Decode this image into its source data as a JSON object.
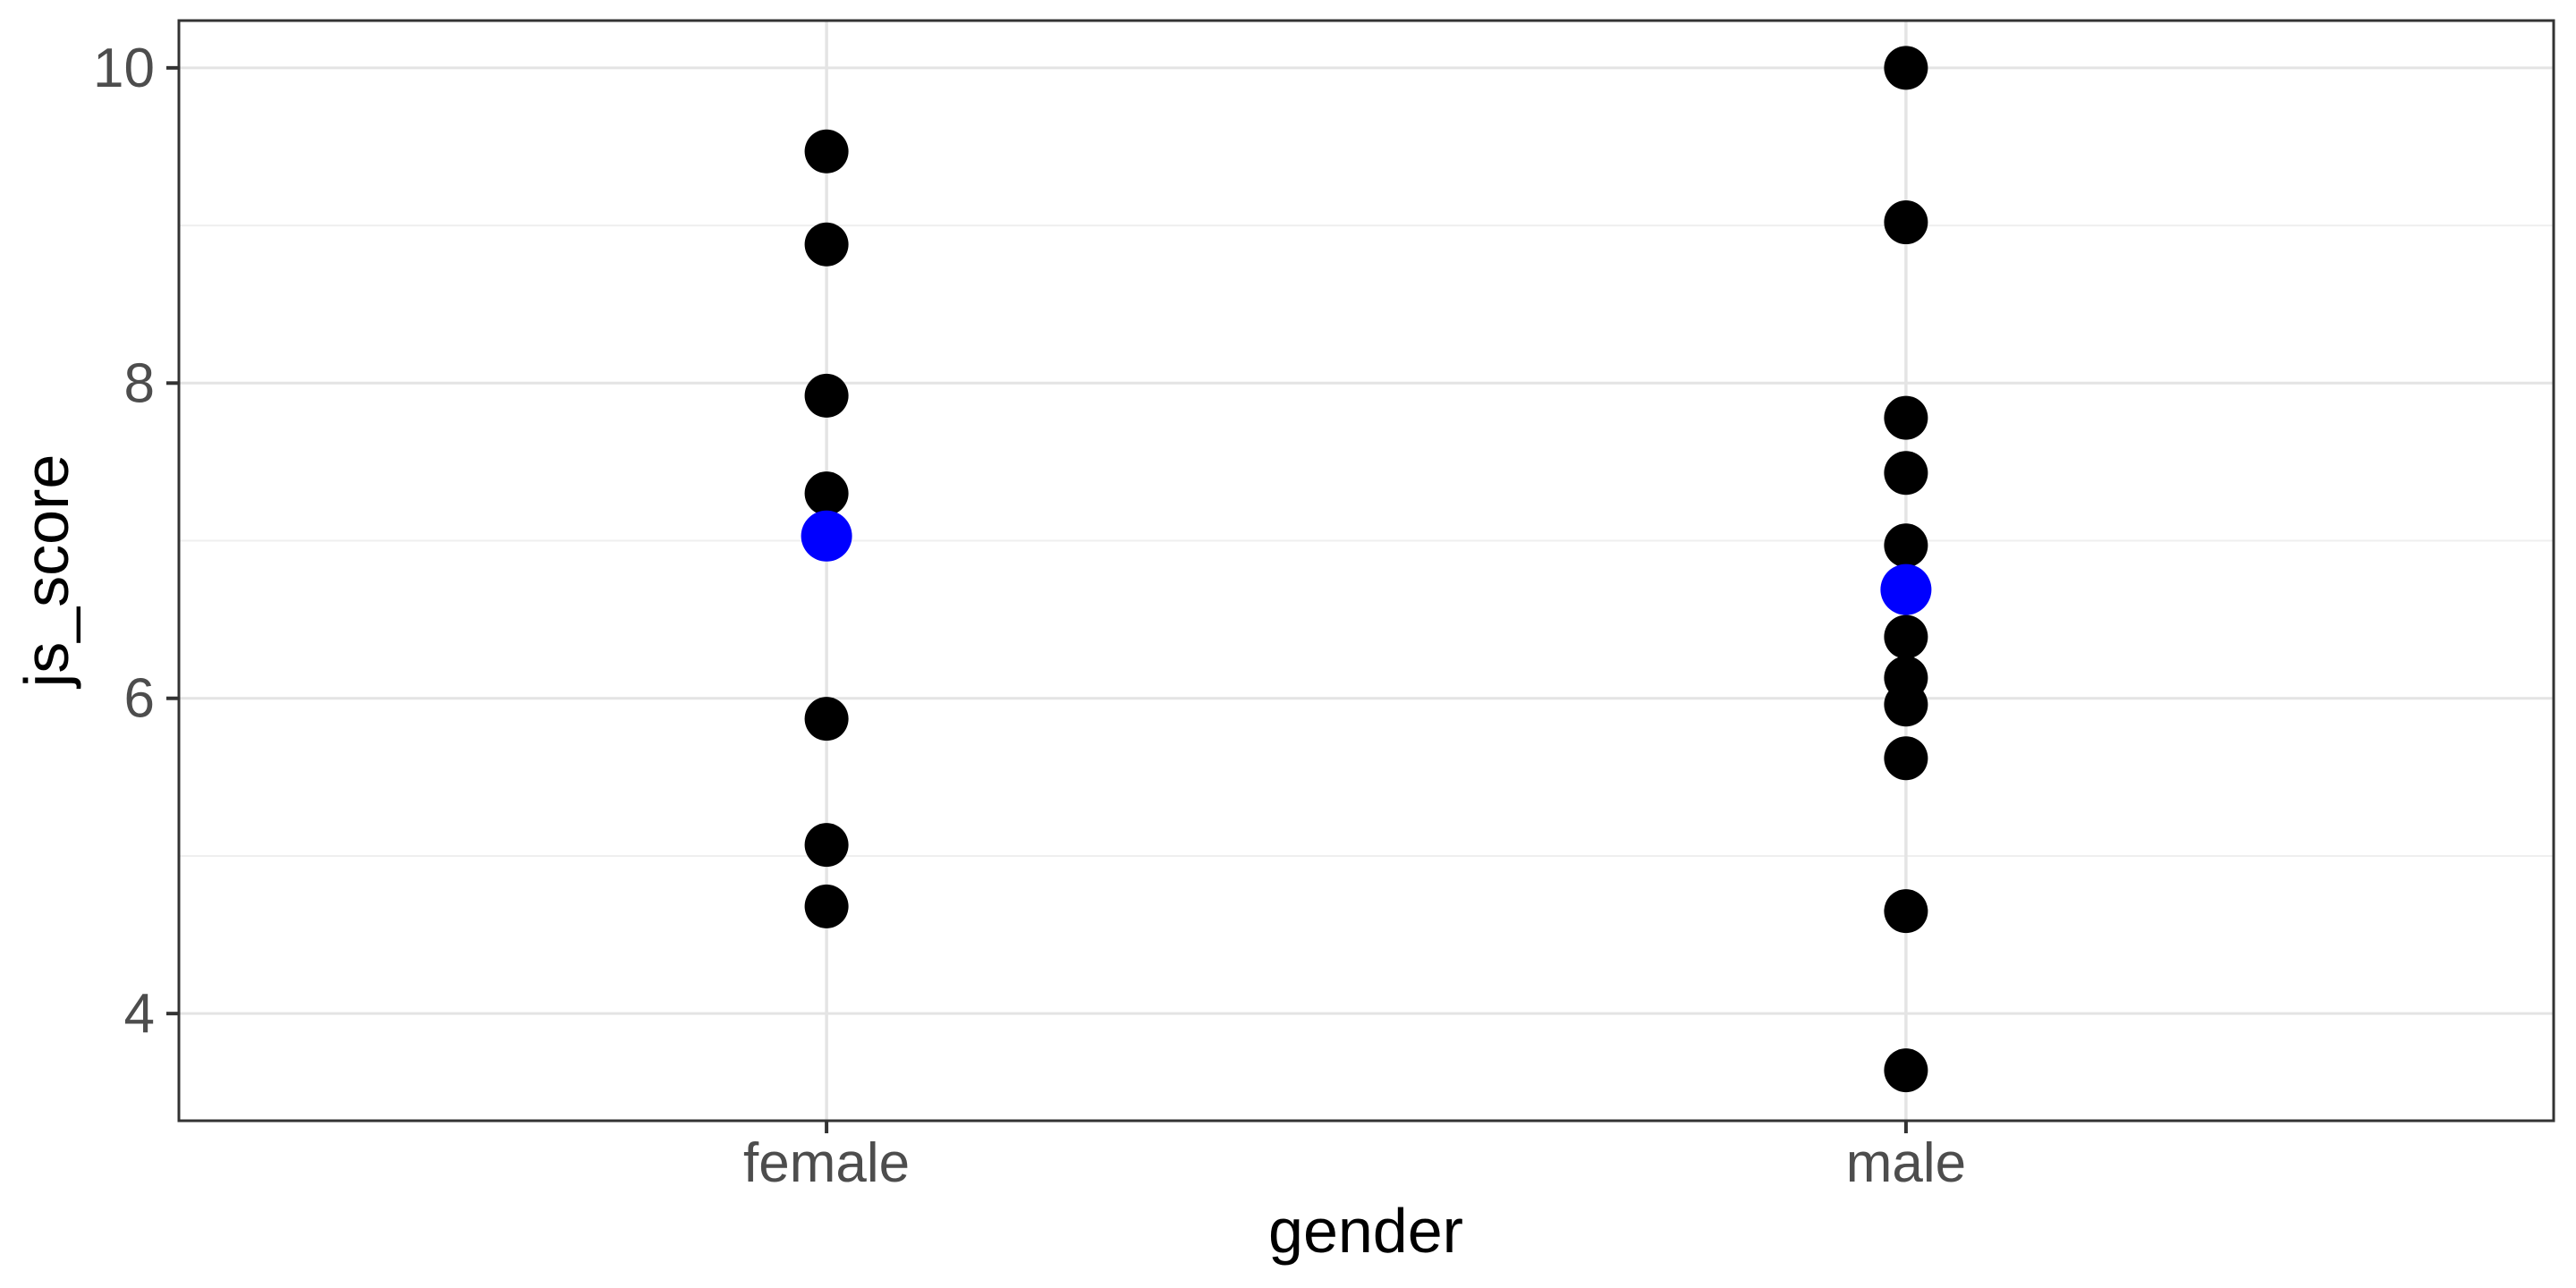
{
  "chart_data": {
    "type": "scatter",
    "subtype": "strip-plot-with-means",
    "title": "",
    "xlabel": "gender",
    "ylabel": "js_score",
    "categories": [
      "female",
      "male"
    ],
    "series": [
      {
        "name": "female_points",
        "category": "female",
        "color": "#000000",
        "values": [
          9.47,
          8.88,
          7.92,
          7.3,
          5.87,
          5.07,
          4.68
        ]
      },
      {
        "name": "male_points",
        "category": "male",
        "color": "#000000",
        "values": [
          10.0,
          9.02,
          7.78,
          7.43,
          6.97,
          6.39,
          6.13,
          5.96,
          5.62,
          4.65,
          3.64
        ]
      }
    ],
    "means": [
      {
        "category": "female",
        "value": 7.03
      },
      {
        "category": "male",
        "value": 6.69
      }
    ],
    "y_ticks": [
      4,
      6,
      8,
      10
    ],
    "y_minor": [
      5,
      7,
      9
    ],
    "ylim": [
      3.32,
      10.3
    ],
    "grid": true,
    "legend": false
  },
  "colors": {
    "point": "#000000",
    "mean_point": "#0000FF",
    "grid_major": "#E4E4E4",
    "grid_minor": "#EFEFEF",
    "panel_border": "#333333",
    "tick_mark": "#333333",
    "axis_text": "#4D4D4D",
    "axis_title": "#000000",
    "panel_background": "#FFFFFF"
  }
}
